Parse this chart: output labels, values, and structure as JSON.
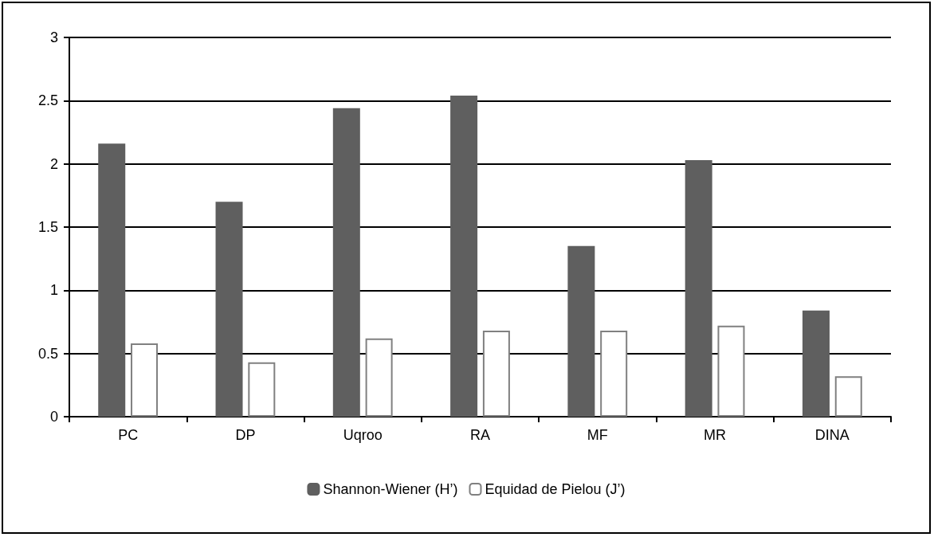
{
  "chart_data": {
    "type": "bar",
    "categories": [
      "PC",
      "DP",
      "Uqroo",
      "RA",
      "MF",
      "MR",
      "DINA"
    ],
    "series": [
      {
        "name": "Shannon-Wiener (H’)",
        "color": "#5f5f5f",
        "values": [
          2.16,
          1.7,
          2.44,
          2.54,
          1.35,
          2.03,
          0.84
        ]
      },
      {
        "name": "Equidad de Pielou (J’)",
        "color": "#ffffff",
        "values": [
          0.58,
          0.43,
          0.62,
          0.68,
          0.68,
          0.72,
          0.32
        ]
      }
    ],
    "ylim": [
      0,
      3
    ],
    "yticks": [
      0,
      0.5,
      1,
      1.5,
      2,
      2.5,
      3
    ],
    "grid": "y",
    "legend": "bottom"
  }
}
